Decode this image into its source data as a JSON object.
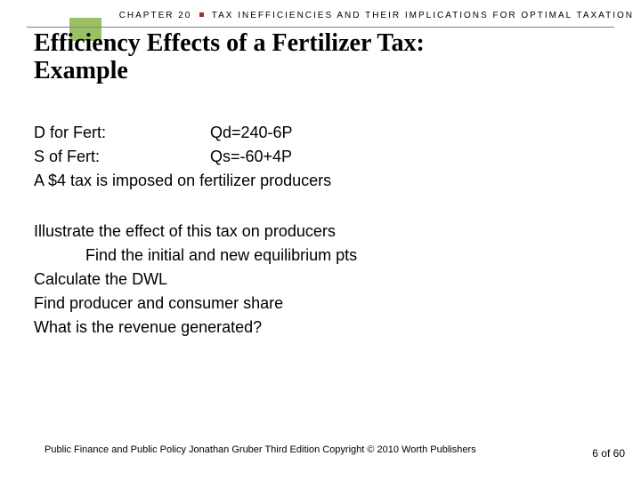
{
  "header": {
    "chapter": "CHAPTER 20",
    "subject": "TAX INEFFICIENCIES AND THEIR IMPLICATIONS FOR OPTIMAL TAXATION"
  },
  "title_line1": "Efficiency Effects of a Fertilizer Tax:",
  "title_line2": "Example",
  "equations": {
    "demand_label": "D for Fert:",
    "demand_eq": "Qd=240-6P",
    "supply_label": "S of Fert:",
    "supply_eq": "Qs=-60+4P"
  },
  "tax_line": "A $4 tax is imposed on fertilizer producers",
  "tasks": {
    "t1": "Illustrate the effect of this tax on producers",
    "t1a": "Find the initial and new equilibrium pts",
    "t2": "Calculate the DWL",
    "t3": "Find producer and consumer share",
    "t4": "What is the revenue generated?"
  },
  "footer": "Public Finance and Public Policy   Jonathan Gruber   Third Edition   Copyright © 2010   Worth Publishers",
  "page": "6 of 60",
  "colors": {
    "accent_green": "#9bbf65",
    "accent_red": "#a03020",
    "rule": "#808080",
    "text": "#000000",
    "bg": "#ffffff"
  }
}
